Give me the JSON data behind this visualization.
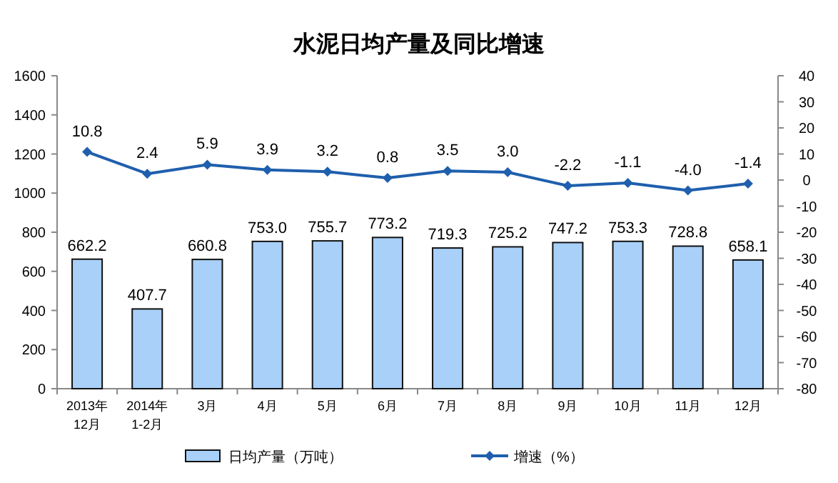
{
  "chart_data": {
    "type": "bar",
    "title": "水泥日均产量及同比增速",
    "categories": [
      "2013年\n12月",
      "2014年\n1-2月",
      "3月",
      "4月",
      "5月",
      "6月",
      "7月",
      "8月",
      "9月",
      "10月",
      "11月",
      "12月"
    ],
    "series": [
      {
        "name": "日均产量（万吨）",
        "color": "#a8d0f8",
        "values": [
          662.2,
          407.7,
          660.8,
          753.0,
          755.7,
          773.2,
          719.3,
          725.2,
          747.2,
          753.3,
          728.8,
          658.1
        ],
        "value_labels": [
          "662.2",
          "407.7",
          "660.8",
          "753.0",
          "755.7",
          "773.2",
          "719.3",
          "725.2",
          "747.2",
          "753.3",
          "728.8",
          "658.1"
        ]
      },
      {
        "name": "增速（%）",
        "type": "line",
        "axis": "y2",
        "color": "#1f5fad",
        "marker": "diamond",
        "values": [
          10.8,
          2.4,
          5.9,
          3.9,
          3.2,
          0.8,
          3.5,
          3.0,
          -2.2,
          -1.1,
          -4.0,
          -1.4
        ],
        "value_labels": [
          "10.8",
          "2.4",
          "5.9",
          "3.9",
          "3.2",
          "0.8",
          "3.5",
          "3.0",
          "-2.2",
          "-1.1",
          "-4.0",
          "-1.4"
        ]
      }
    ],
    "ylim": [
      0,
      1600
    ],
    "yticks": [
      0,
      200,
      400,
      600,
      800,
      1000,
      1200,
      1400,
      1600
    ],
    "y2lim": [
      -80,
      40
    ],
    "y2ticks": [
      -80,
      -70,
      -60,
      -50,
      -40,
      -30,
      -20,
      -10,
      0,
      10,
      20,
      30,
      40
    ],
    "legend": "bottom",
    "grid": false
  }
}
